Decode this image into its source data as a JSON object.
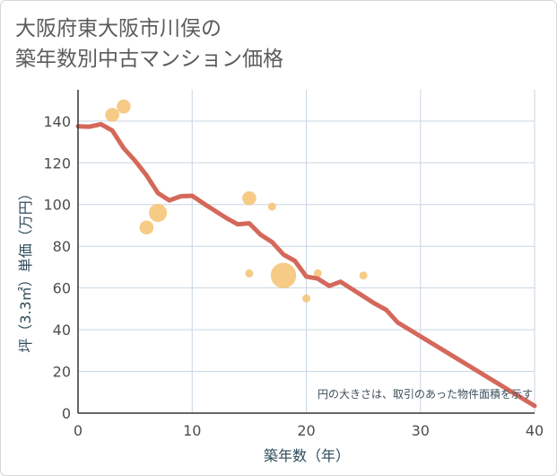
{
  "title_lines": [
    "大阪府東大阪市川俣の",
    "築年数別中古マンション価格"
  ],
  "chart_data": {
    "type": "scatter",
    "xlabel": "築年数（年）",
    "ylabel": "坪（3.3㎡）単価（万円）",
    "xlim": [
      0,
      40
    ],
    "ylim": [
      0,
      155
    ],
    "xticks": [
      0,
      10,
      20,
      30,
      40
    ],
    "yticks": [
      0,
      20,
      40,
      60,
      80,
      100,
      120,
      140
    ],
    "grid": true,
    "note": "円の大きさは、取引のあった物件面積を示す",
    "colors": {
      "bubble": "#f5c271",
      "line": "#d4685a",
      "grid": "#c9d6e3"
    },
    "bubbles": [
      {
        "x": 3,
        "y": 143,
        "size": 3
      },
      {
        "x": 4,
        "y": 147,
        "size": 3
      },
      {
        "x": 6,
        "y": 89,
        "size": 3
      },
      {
        "x": 7,
        "y": 96,
        "size": 5
      },
      {
        "x": 15,
        "y": 103,
        "size": 3
      },
      {
        "x": 15,
        "y": 67,
        "size": 1
      },
      {
        "x": 17,
        "y": 99,
        "size": 1
      },
      {
        "x": 18,
        "y": 66,
        "size": 10
      },
      {
        "x": 20,
        "y": 55,
        "size": 1
      },
      {
        "x": 21,
        "y": 67,
        "size": 1
      },
      {
        "x": 25,
        "y": 66,
        "size": 1
      }
    ],
    "trend": {
      "x": [
        0,
        1,
        2,
        3,
        4,
        5,
        6,
        7,
        8,
        9,
        10,
        11,
        12,
        13,
        14,
        15,
        16,
        17,
        18,
        19,
        20,
        21,
        22,
        23,
        24,
        25,
        26,
        27,
        28,
        40
      ],
      "y": [
        137.5,
        137.3,
        138.5,
        135.5,
        127,
        121,
        114,
        105.5,
        102,
        104,
        104.2,
        100.5,
        97,
        93.5,
        90.5,
        91,
        85.5,
        82,
        76,
        73,
        65.5,
        64.5,
        61,
        63,
        59.5,
        56,
        52.5,
        49.5,
        43.5,
        3.5
      ]
    }
  }
}
